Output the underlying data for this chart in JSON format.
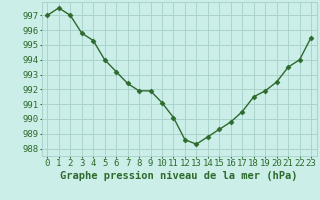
{
  "x": [
    0,
    1,
    2,
    3,
    4,
    5,
    6,
    7,
    8,
    9,
    10,
    11,
    12,
    13,
    14,
    15,
    16,
    17,
    18,
    19,
    20,
    21,
    22,
    23
  ],
  "y": [
    997.0,
    997.5,
    997.0,
    995.8,
    995.3,
    994.0,
    993.2,
    992.4,
    991.9,
    991.9,
    991.1,
    990.1,
    988.6,
    988.3,
    988.8,
    989.3,
    989.8,
    990.5,
    991.5,
    991.9,
    992.5,
    993.5,
    994.0,
    995.5
  ],
  "line_color": "#2d6a2d",
  "marker": "D",
  "marker_size": 2.5,
  "bg_color": "#cceee8",
  "grid_color": "#aad4cc",
  "xlabel": "Graphe pression niveau de la mer (hPa)",
  "xlabel_fontsize": 7.5,
  "ytick_labels": [
    "988",
    "989",
    "990",
    "991",
    "992",
    "993",
    "994",
    "995",
    "996",
    "997"
  ],
  "ylim": [
    987.5,
    997.9
  ],
  "xlim": [
    -0.5,
    23.5
  ],
  "tick_color": "#2d6a2d",
  "tick_fontsize": 6.5,
  "linewidth": 1.0
}
